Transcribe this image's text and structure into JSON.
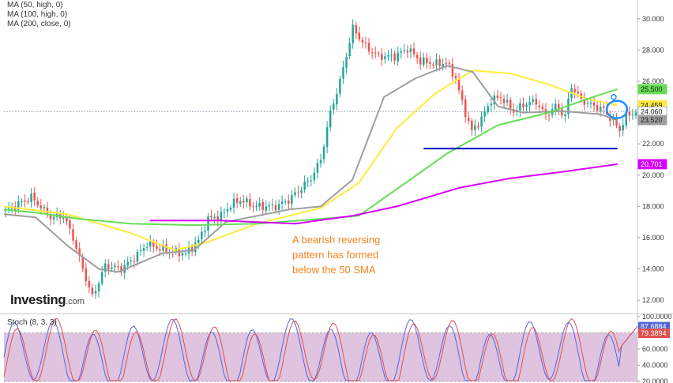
{
  "legend": {
    "lines": [
      "MA (50, high, 0)",
      "MA (100, high, 0)",
      "MA (200, close, 0)"
    ]
  },
  "annotation": {
    "lines": [
      "A bearish reversing",
      "pattern has formed",
      "below the 50 SMA"
    ]
  },
  "logo": {
    "name": "Investing",
    "suffix": ".com"
  },
  "stoch_label": "Stoch (8, 3, 3)",
  "colors": {
    "up": "#26a69a",
    "down": "#ef5350",
    "ma50": "#ffeb3b",
    "ma100": "#9e9e9e",
    "ma200": "#d500f9",
    "sma_green": "#66dd55",
    "support": "#0000cc",
    "annotation": "#f58220",
    "stoch_fill": "#d9b8d9",
    "stoch_k": "#5566dd",
    "stoch_d": "#e05050",
    "circle": "#1e90ff"
  },
  "chart_data": [
    {
      "type": "candlestick",
      "title": "",
      "xlabel": "",
      "ylabel": "",
      "ylim": [
        11.2,
        31.0
      ],
      "y_ticks": [
        "30.000",
        "28.000",
        "26.000",
        "24.000",
        "22.000",
        "20.000",
        "18.000",
        "16.000",
        "14.000",
        "12.000"
      ],
      "price_labels": [
        {
          "name": "ma200-label",
          "value": 25.5,
          "text": "25.500",
          "color": "#66dd55"
        },
        {
          "name": "ma50-label",
          "value": 24.459,
          "text": "24.459",
          "color": "#ffeb3b"
        },
        {
          "name": "last-price-label",
          "value": 24.06,
          "text": "24.060",
          "color": "#ffffff"
        },
        {
          "name": "ma100-label",
          "value": 23.52,
          "text": "23.520",
          "color": "#9e9e9e"
        },
        {
          "name": "sma-label",
          "value": 20.701,
          "text": "20.701",
          "color": "#d500f9"
        }
      ],
      "last_price": 24.06,
      "support_level": 21.7,
      "support_range": [
        0.6625,
        0.9684
      ],
      "ma_legend": [
        "MA (50, high, 0)",
        "MA (100, high, 0)",
        "MA (200, close, 0)"
      ]
    },
    {
      "type": "line",
      "title": "Stoch (8, 3, 3)",
      "ylim": [
        20,
        100
      ],
      "y_ticks": [
        "100.0000",
        "80.0000",
        "60.0000",
        "40.0000",
        "20.0000"
      ],
      "reference_lines": [
        80,
        20
      ],
      "series": [
        {
          "name": "%K",
          "last": 87.6884,
          "text": "87.6884",
          "color": "#5566dd"
        },
        {
          "name": "%D",
          "last": 79.3894,
          "text": "79.3894",
          "color": "#e05050"
        }
      ]
    }
  ]
}
